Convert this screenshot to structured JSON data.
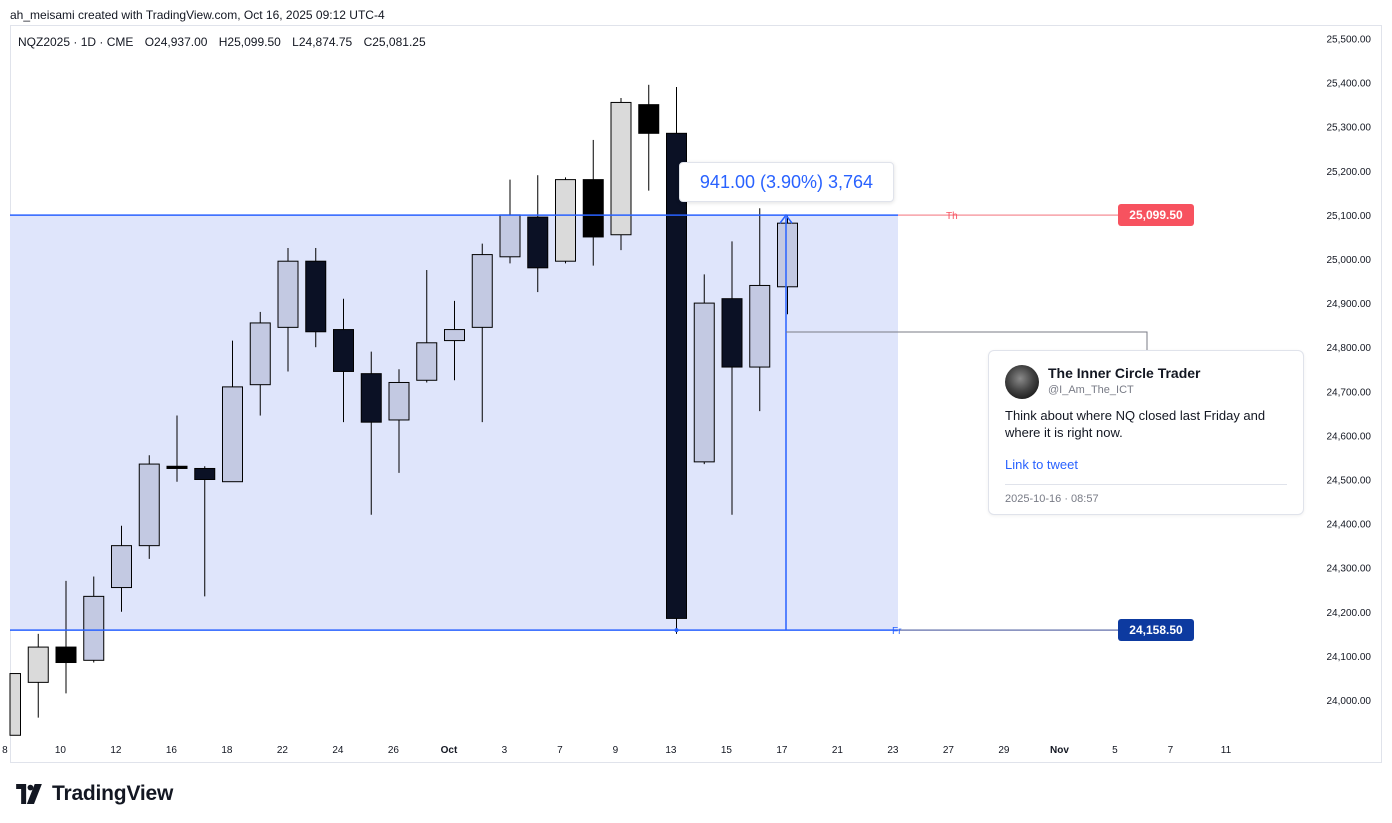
{
  "header": {
    "author_line": "ah_meisami created with TradingView.com, Oct 16, 2025 09:12 UTC-4"
  },
  "legend": {
    "symbol": "NQZ2025 · 1D · CME",
    "open": "O24,937.00",
    "high": "H25,099.50",
    "low": "L24,874.75",
    "close": "C25,081.25"
  },
  "measurement": {
    "label": "941.00 (3.90%) 3,764"
  },
  "levels": {
    "top": {
      "tag": "Th",
      "price": 25099.5,
      "label": "25,099.50",
      "color": "#f7525f"
    },
    "bottom": {
      "tag": "Fr",
      "price": 24158.5,
      "label": "24,158.50",
      "color": "#0d3aa0"
    }
  },
  "tweet": {
    "name": "The Inner Circle Trader",
    "handle": "@I_Am_The_ICT",
    "text": "Think about where NQ closed last Friday and where it is right now.",
    "link_label": "Link to tweet",
    "date": "2025-10-16 · 08:57"
  },
  "brand": {
    "name": "TradingView"
  },
  "colors": {
    "up_fill": "#c3c9e2",
    "up_fill_light": "#dadada",
    "down_fill": "#0b1125",
    "down_black": "#000000",
    "zone_fill": "#dfe5fb",
    "accent": "#2962ff"
  },
  "chart_data": {
    "type": "candlestick",
    "y_axis": {
      "min": 23920,
      "max": 25510,
      "ticks": [
        24000,
        24100,
        24200,
        24300,
        24400,
        24500,
        24600,
        24700,
        24800,
        24900,
        25000,
        25100,
        25200,
        25300,
        25400,
        25500
      ],
      "tick_labels": [
        "24,000.00",
        "24,100.00",
        "24,200.00",
        "24,300.00",
        "24,400.00",
        "24,500.00",
        "24,600.00",
        "24,700.00",
        "24,800.00",
        "24,900.00",
        "25,000.00",
        "25,100.00",
        "25,200.00",
        "25,300.00",
        "25,400.00",
        "25,500.00"
      ]
    },
    "x_axis": {
      "labels": [
        "8",
        "10",
        "12",
        "16",
        "18",
        "22",
        "24",
        "26",
        "Oct",
        "3",
        "7",
        "9",
        "13",
        "15",
        "17",
        "21",
        "23",
        "27",
        "29",
        "Nov",
        "5",
        "7",
        "11"
      ],
      "label_bars": [
        -0.2,
        1.8,
        3.8,
        5.8,
        7.8,
        9.8,
        11.8,
        13.8,
        15.8,
        17.8,
        19.8,
        21.8,
        23.8,
        25.8,
        27.8,
        29.8,
        31.8,
        33.8,
        35.8,
        37.8,
        39.8,
        41.8,
        43.8
      ]
    },
    "candles": [
      {
        "o": 24060,
        "h": 24060,
        "l": 23920,
        "c": 23920,
        "style": "up_light"
      },
      {
        "o": 24040,
        "h": 24150,
        "l": 23960,
        "c": 24120,
        "style": "up_light"
      },
      {
        "o": 24120,
        "h": 24270,
        "l": 24015,
        "c": 24085,
        "style": "down_black"
      },
      {
        "o": 24090,
        "h": 24280,
        "l": 24085,
        "c": 24235,
        "style": "up"
      },
      {
        "o": 24255,
        "h": 24395,
        "l": 24200,
        "c": 24350,
        "style": "up"
      },
      {
        "o": 24350,
        "h": 24555,
        "l": 24320,
        "c": 24535,
        "style": "up"
      },
      {
        "o": 24530,
        "h": 24645,
        "l": 24495,
        "c": 24525,
        "style": "down_black"
      },
      {
        "o": 24525,
        "h": 24530,
        "l": 24235,
        "c": 24500,
        "style": "down"
      },
      {
        "o": 24495,
        "h": 24815,
        "l": 24495,
        "c": 24710,
        "style": "up"
      },
      {
        "o": 24715,
        "h": 24880,
        "l": 24645,
        "c": 24855,
        "style": "up"
      },
      {
        "o": 24845,
        "h": 25025,
        "l": 24745,
        "c": 24995,
        "style": "up"
      },
      {
        "o": 24995,
        "h": 25025,
        "l": 24800,
        "c": 24835,
        "style": "down"
      },
      {
        "o": 24840,
        "h": 24910,
        "l": 24630,
        "c": 24745,
        "style": "down"
      },
      {
        "o": 24740,
        "h": 24790,
        "l": 24420,
        "c": 24630,
        "style": "down"
      },
      {
        "o": 24635,
        "h": 24750,
        "l": 24515,
        "c": 24720,
        "style": "up"
      },
      {
        "o": 24725,
        "h": 24975,
        "l": 24720,
        "c": 24810,
        "style": "up"
      },
      {
        "o": 24815,
        "h": 24905,
        "l": 24725,
        "c": 24840,
        "style": "up"
      },
      {
        "o": 24845,
        "h": 25035,
        "l": 24630,
        "c": 25010,
        "style": "up"
      },
      {
        "o": 25005,
        "h": 25180,
        "l": 24990,
        "c": 25100,
        "style": "up"
      },
      {
        "o": 25095,
        "h": 25190,
        "l": 24925,
        "c": 24980,
        "style": "down"
      },
      {
        "o": 24995,
        "h": 25185,
        "l": 24990,
        "c": 25180,
        "style": "up_light"
      },
      {
        "o": 25180,
        "h": 25270,
        "l": 24985,
        "c": 25050,
        "style": "down_black"
      },
      {
        "o": 25055,
        "h": 25365,
        "l": 25020,
        "c": 25355,
        "style": "up_light"
      },
      {
        "o": 25350,
        "h": 25395,
        "l": 25155,
        "c": 25285,
        "style": "down_black"
      },
      {
        "o": 25285,
        "h": 25390,
        "l": 24150,
        "c": 24185,
        "style": "down"
      },
      {
        "o": 24540,
        "h": 24965,
        "l": 24535,
        "c": 24900,
        "style": "up"
      },
      {
        "o": 24910,
        "h": 25040,
        "l": 24420,
        "c": 24755,
        "style": "down"
      },
      {
        "o": 24755,
        "h": 25115,
        "l": 24655,
        "c": 24940,
        "style": "up"
      },
      {
        "o": 24937,
        "h": 25099.5,
        "l": 24874.75,
        "c": 25081.25,
        "style": "up"
      }
    ]
  }
}
